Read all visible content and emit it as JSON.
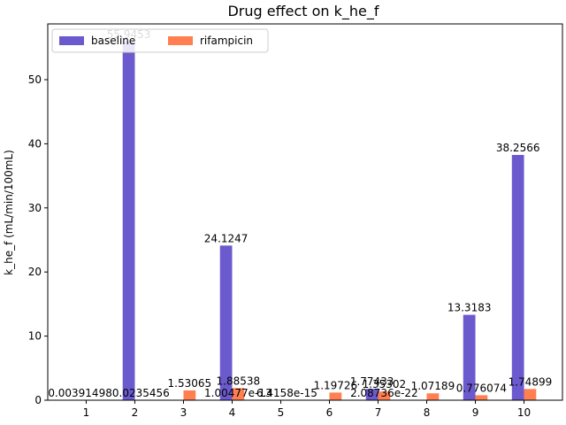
{
  "chart_data": {
    "type": "bar",
    "title": "Drug effect on k_he_f",
    "xlabel": "",
    "ylabel": "k_he_f (mL/min/100mL)",
    "categories": [
      "1",
      "2",
      "3",
      "4",
      "5",
      "6",
      "7",
      "8",
      "9",
      "10"
    ],
    "series": [
      {
        "name": "baseline",
        "color": "#6a5acd",
        "values": [
          0.00391498,
          55.9453,
          0,
          24.1247,
          0,
          0,
          1.77433,
          0,
          13.3183,
          38.2566
        ],
        "labels": [
          "0.00391498",
          "55.9453",
          "",
          "24.1247",
          "",
          "",
          "1.77433",
          "",
          "13.3183",
          "38.2566"
        ]
      },
      {
        "name": "rifampicin",
        "color": "#ff7f50",
        "values": [
          0,
          0.0235456,
          1.53065,
          1.88538,
          0,
          1.19726,
          1.35302,
          1.07189,
          0.776074,
          1.74899
        ],
        "labels": [
          "",
          "0.0235456",
          "1.53065",
          "1.88538",
          "",
          "1.19726",
          "1.35302",
          "1.07189",
          "0.776074",
          "1.74899"
        ]
      }
    ],
    "extra_labels": [
      {
        "category": "4",
        "text": "1.00477e-13"
      },
      {
        "category": "5",
        "text": "6.4158e-15"
      },
      {
        "category": "7",
        "text": "2.08736e-22"
      }
    ],
    "yticks": [
      0,
      10,
      20,
      30,
      40,
      50
    ],
    "ylim": [
      0,
      58.7
    ],
    "legend": "top-left",
    "grid": false
  }
}
